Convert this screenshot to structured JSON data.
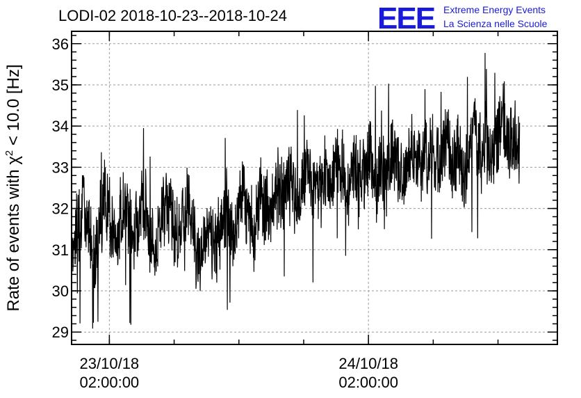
{
  "title": "LODI-02 2018-10-23--2018-10-24",
  "logo": {
    "mark": "EEE",
    "line1": "Extreme Energy Events",
    "line2": "La Scienza nelle Scuole",
    "color": "#1a1adb"
  },
  "chart_data": {
    "type": "line",
    "title": "LODI-02 2018-10-23--2018-10-24",
    "ylabel_parts": [
      "Rate of events with ",
      "χ",
      "2",
      " < 10.0 [Hz]"
    ],
    "xlabel": "",
    "ylim": [
      28.7,
      36.3
    ],
    "yticks": [
      29,
      30,
      31,
      32,
      33,
      34,
      35,
      36
    ],
    "xlim_hours": [
      -3.5,
      41.5
    ],
    "xticks": [
      {
        "hours": 0,
        "date": "23/10/18",
        "time": "02:00:00"
      },
      {
        "hours": 24,
        "date": "24/10/18",
        "time": "02:00:00"
      }
    ],
    "grid": true,
    "series": [
      {
        "color": "#000000",
        "sample_interval_min": 30,
        "x_start_hours": -3.5,
        "x_end_hours": 38.0,
        "values": [
          31.2,
          31.5,
          32.1,
          31.8,
          30.9,
          31.3,
          32.4,
          31.6,
          31.1,
          31.9,
          32.0,
          31.4,
          31.7,
          32.3,
          31.5,
          30.8,
          31.6,
          32.2,
          31.9,
          31.3,
          31.8,
          32.1,
          31.4,
          30.7,
          31.2,
          31.5,
          31.0,
          31.6,
          32.0,
          31.3,
          31.9,
          32.3,
          31.7,
          31.4,
          32.5,
          32.1,
          31.8,
          32.6,
          32.2,
          32.8,
          32.4,
          32.0,
          32.7,
          33.1,
          32.5,
          32.3,
          32.9,
          32.6,
          33.2,
          32.8,
          32.5,
          33.0,
          32.7,
          32.9,
          33.3,
          32.6,
          33.1,
          32.8,
          33.4,
          33.0,
          32.7,
          33.2,
          33.5,
          32.9,
          33.1,
          33.6,
          33.0,
          33.3,
          33.7,
          33.2,
          33.4,
          32.8,
          33.5,
          33.9,
          33.3,
          33.6,
          33.1,
          33.8,
          34.0,
          33.4,
          33.7,
          33.2
        ]
      }
    ]
  }
}
